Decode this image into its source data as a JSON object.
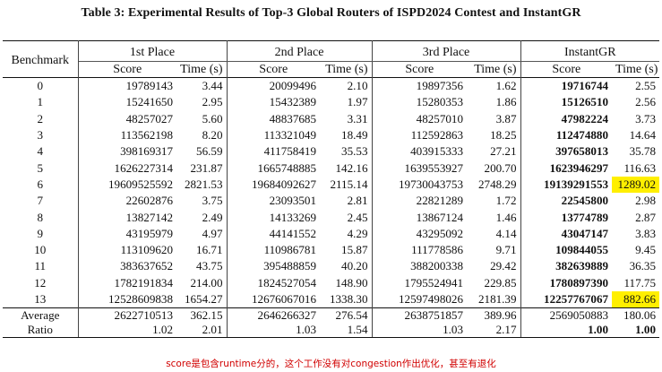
{
  "caption": "Table 3: Experimental Results of Top-3 Global Routers of ISPD2024 Contest and InstantGR",
  "header": {
    "benchmark": "Benchmark",
    "groups": [
      "1st Place",
      "2nd Place",
      "3rd Place",
      "InstantGR"
    ],
    "score": "Score",
    "time": "Time (s)"
  },
  "rows": [
    {
      "bench": "0",
      "c": [
        [
          "19789143",
          "3.44"
        ],
        [
          "20099496",
          "2.10"
        ],
        [
          "19897356",
          "1.62"
        ],
        [
          "19716744",
          "2.55"
        ]
      ]
    },
    {
      "bench": "1",
      "c": [
        [
          "15241650",
          "2.95"
        ],
        [
          "15432389",
          "1.97"
        ],
        [
          "15280353",
          "1.86"
        ],
        [
          "15126510",
          "2.56"
        ]
      ]
    },
    {
      "bench": "2",
      "c": [
        [
          "48257027",
          "5.60"
        ],
        [
          "48837685",
          "3.31"
        ],
        [
          "48257010",
          "3.87"
        ],
        [
          "47982224",
          "3.73"
        ]
      ]
    },
    {
      "bench": "3",
      "c": [
        [
          "113562198",
          "8.20"
        ],
        [
          "113321049",
          "18.49"
        ],
        [
          "112592863",
          "18.25"
        ],
        [
          "112474880",
          "14.64"
        ]
      ]
    },
    {
      "bench": "4",
      "c": [
        [
          "398169317",
          "56.59"
        ],
        [
          "411758419",
          "35.53"
        ],
        [
          "403915333",
          "27.21"
        ],
        [
          "397658013",
          "35.78"
        ]
      ]
    },
    {
      "bench": "5",
      "c": [
        [
          "1626227314",
          "231.87"
        ],
        [
          "1665748885",
          "142.16"
        ],
        [
          "1639553927",
          "200.70"
        ],
        [
          "1623946297",
          "116.63"
        ]
      ]
    },
    {
      "bench": "6",
      "c": [
        [
          "19609525592",
          "2821.53"
        ],
        [
          "19684092627",
          "2115.14"
        ],
        [
          "19730043753",
          "2748.29"
        ],
        [
          "19139291553",
          "1289.02"
        ]
      ]
    },
    {
      "bench": "7",
      "c": [
        [
          "22602876",
          "3.75"
        ],
        [
          "23093501",
          "2.81"
        ],
        [
          "22821289",
          "1.72"
        ],
        [
          "22545800",
          "2.98"
        ]
      ]
    },
    {
      "bench": "8",
      "c": [
        [
          "13827142",
          "2.49"
        ],
        [
          "14133269",
          "2.45"
        ],
        [
          "13867124",
          "1.46"
        ],
        [
          "13774789",
          "2.87"
        ]
      ]
    },
    {
      "bench": "9",
      "c": [
        [
          "43195979",
          "4.97"
        ],
        [
          "44141552",
          "4.29"
        ],
        [
          "43295092",
          "4.14"
        ],
        [
          "43047147",
          "3.83"
        ]
      ]
    },
    {
      "bench": "10",
      "c": [
        [
          "113109620",
          "16.71"
        ],
        [
          "110986781",
          "15.87"
        ],
        [
          "111778586",
          "9.71"
        ],
        [
          "109844055",
          "9.45"
        ]
      ]
    },
    {
      "bench": "11",
      "c": [
        [
          "383637652",
          "43.75"
        ],
        [
          "395488859",
          "40.20"
        ],
        [
          "388200338",
          "29.42"
        ],
        [
          "382639889",
          "36.35"
        ]
      ]
    },
    {
      "bench": "12",
      "c": [
        [
          "1782191834",
          "214.00"
        ],
        [
          "1824527054",
          "148.90"
        ],
        [
          "1795524941",
          "229.85"
        ],
        [
          "1780897390",
          "117.75"
        ]
      ]
    },
    {
      "bench": "13",
      "c": [
        [
          "12528609838",
          "1654.27"
        ],
        [
          "12676067016",
          "1338.30"
        ],
        [
          "12597498026",
          "2181.39"
        ],
        [
          "12257767067",
          "882.66"
        ]
      ]
    }
  ],
  "average": {
    "label": "Average",
    "c": [
      [
        "2622710513",
        "362.15"
      ],
      [
        "2646266327",
        "276.54"
      ],
      [
        "2638751857",
        "389.96"
      ],
      [
        "2569050883",
        "180.06"
      ]
    ]
  },
  "ratio": {
    "label": "Ratio",
    "c": [
      [
        "1.02",
        "2.01"
      ],
      [
        "1.03",
        "1.54"
      ],
      [
        "1.03",
        "2.17"
      ],
      [
        "1.00",
        "1.00"
      ]
    ]
  },
  "highlighted_cells": [
    {
      "row": "6",
      "col": "InstantGR Time (s)"
    },
    {
      "row": "13",
      "col": "InstantGR Time (s)"
    }
  ],
  "highlight_color": "#ffef00",
  "note": "score是包含runtime分的，这个工作没有对congestion作出优化，甚至有退化",
  "note_color": "#d10000"
}
